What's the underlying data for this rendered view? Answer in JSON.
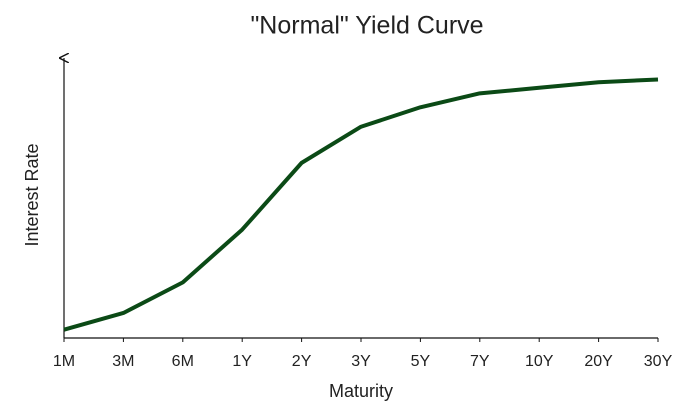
{
  "chart_data": {
    "type": "line",
    "title": "\"Normal\" Yield Curve",
    "x_label": "Maturity",
    "y_label": "Interest Rate",
    "categories": [
      "1M",
      "3M",
      "6M",
      "1Y",
      "2Y",
      "3Y",
      "5Y",
      "7Y",
      "10Y",
      "20Y",
      "30Y"
    ],
    "series": [
      {
        "color": "#0b4a16",
        "values": [
          3,
          9,
          20,
          39,
          63,
          76,
          83,
          88,
          90,
          92,
          93
        ]
      }
    ],
    "ylim": [
      0,
      100
    ]
  }
}
